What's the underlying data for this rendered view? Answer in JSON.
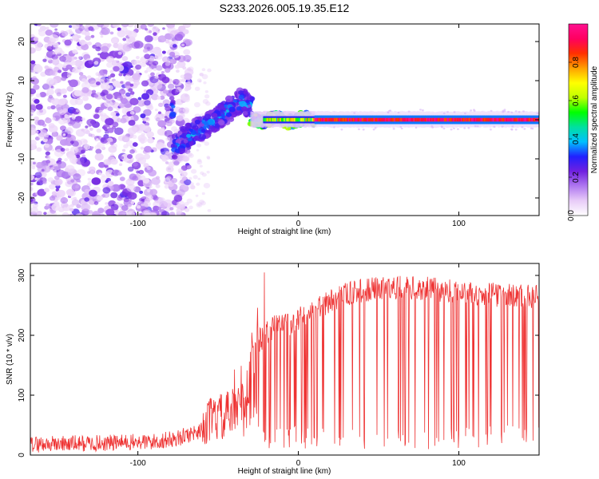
{
  "title": "S233.2026.005.19.35.E12",
  "chart_data": [
    {
      "type": "heatmap",
      "xlabel": "Height of straight line (km)",
      "ylabel": "Frequency (Hz)",
      "xlim": [
        -167,
        150
      ],
      "ylim": [
        -24.5,
        24.5
      ],
      "x_ticks": [
        -100,
        0,
        100
      ],
      "y_ticks": [
        -20,
        -10,
        0,
        10,
        20
      ],
      "colorbar": {
        "label": "Normalized spectral amplitude",
        "range": [
          0,
          1
        ],
        "ticks": [
          "0.0",
          "0.2",
          "0.4",
          "0.6",
          "0.8"
        ],
        "colors": [
          "#ffffff",
          "#e8ccf8",
          "#b078f0",
          "#7020e0",
          "#2020ff",
          "#00c0ff",
          "#00e0a0",
          "#00ff00",
          "#c0ff00",
          "#ffff00",
          "#ffa000",
          "#ff3000",
          "#ff0060",
          "#ff1090"
        ]
      },
      "regions": [
        {
          "x": [
            -167,
            -68
          ],
          "description_level": 0.12,
          "spread_hz": 24
        },
        {
          "x": [
            -78,
            -30
          ],
          "center_freq_trend": [
            [
              -78,
              -7
            ],
            [
              -60,
              -2
            ],
            [
              -45,
              2
            ],
            [
              -35,
              5
            ],
            [
              -30,
              3
            ]
          ],
          "level": 0.35
        },
        {
          "x": [
            -30,
            10
          ],
          "center_freq": 0,
          "level": 0.55
        },
        {
          "x": [
            10,
            150
          ],
          "center_freq": 0,
          "level": 0.95
        }
      ]
    },
    {
      "type": "line",
      "xlabel": "Height of straight line (km)",
      "ylabel": "SNR (10 * v/v)",
      "xlim": [
        -167,
        150
      ],
      "ylim": [
        0,
        320
      ],
      "x_ticks": [
        -100,
        0,
        100
      ],
      "y_ticks": [
        0,
        100,
        200,
        300
      ],
      "color": "#ee3333",
      "profile": [
        [
          -167,
          18
        ],
        [
          -120,
          20
        ],
        [
          -90,
          22
        ],
        [
          -75,
          28
        ],
        [
          -62,
          40
        ],
        [
          -55,
          70
        ],
        [
          -45,
          75
        ],
        [
          -35,
          90
        ],
        [
          -25,
          190
        ],
        [
          -15,
          215
        ],
        [
          -5,
          220
        ],
        [
          5,
          235
        ],
        [
          15,
          250
        ],
        [
          25,
          265
        ],
        [
          40,
          275
        ],
        [
          60,
          280
        ],
        [
          80,
          278
        ],
        [
          100,
          272
        ],
        [
          120,
          268
        ],
        [
          150,
          265
        ]
      ]
    }
  ]
}
